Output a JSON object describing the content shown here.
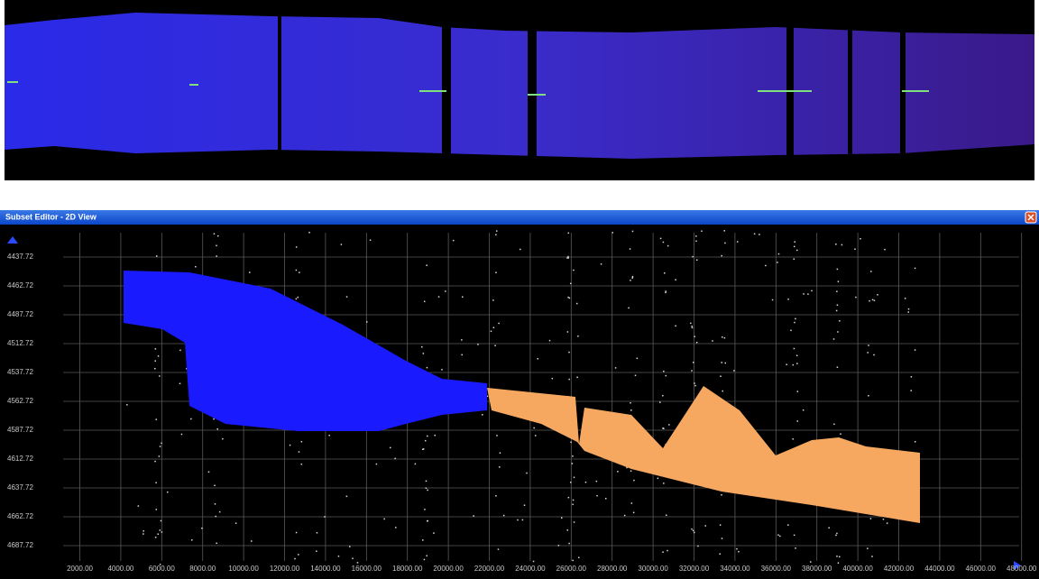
{
  "window": {
    "title": "Subset Editor - 2D View"
  },
  "chart_data": {
    "type": "scatter",
    "xlim": [
      -1900,
      48850
    ],
    "xticks": [
      {
        "value": 2000,
        "label": "2000.00"
      },
      {
        "value": 4000,
        "label": "4000.00"
      },
      {
        "value": 6000,
        "label": "6000.00"
      },
      {
        "value": 8000,
        "label": "8000.00"
      },
      {
        "value": 10000,
        "label": "10000.00"
      },
      {
        "value": 12000,
        "label": "12000.00"
      },
      {
        "value": 14000,
        "label": "14000.00"
      },
      {
        "value": 16000,
        "label": "16000.00"
      },
      {
        "value": 18000,
        "label": "18000.00"
      },
      {
        "value": 20000,
        "label": "20000.00"
      },
      {
        "value": 22000,
        "label": "22000.00"
      },
      {
        "value": 24000,
        "label": "24000.00"
      },
      {
        "value": 26000,
        "label": "26000.00"
      },
      {
        "value": 28000,
        "label": "28000.00"
      },
      {
        "value": 30000,
        "label": "30000.00"
      },
      {
        "value": 32000,
        "label": "32000.00"
      },
      {
        "value": 34000,
        "label": "34000.00"
      },
      {
        "value": 36000,
        "label": "36000.00"
      },
      {
        "value": 38000,
        "label": "38000.00"
      },
      {
        "value": 40000,
        "label": "40000.00"
      },
      {
        "value": 42000,
        "label": "42000.00"
      },
      {
        "value": 44000,
        "label": "44000.00"
      },
      {
        "value": 46000,
        "label": "46000.00"
      },
      {
        "value": 48000,
        "label": "48000.00"
      }
    ],
    "ylim": [
      4716.6,
      4409.6
    ],
    "yticks": [
      4437.72,
      4462.72,
      4487.72,
      4512.72,
      4537.72,
      4562.72,
      4587.72,
      4612.72,
      4637.72,
      4662.72,
      4687.72
    ],
    "grid": true
  }
}
